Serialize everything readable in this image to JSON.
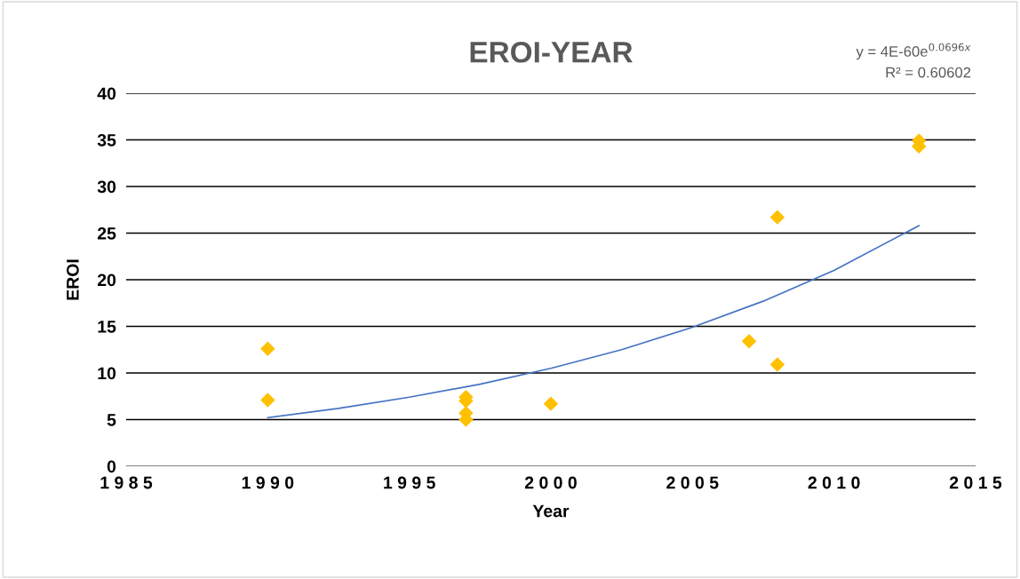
{
  "chart_data": {
    "type": "scatter",
    "title": "EROI-YEAR",
    "xlabel": "Year",
    "ylabel": "EROI",
    "xlim": [
      1985,
      2015
    ],
    "xticks": [
      1985,
      1990,
      1995,
      2000,
      2005,
      2010,
      2015
    ],
    "ylim": [
      0,
      40
    ],
    "yticks": [
      0,
      5,
      10,
      15,
      20,
      25,
      30,
      35,
      40
    ],
    "grid": "y",
    "marker": "diamond",
    "series": [
      {
        "color": "#ffc000",
        "x": [
          1990,
          1990,
          1997,
          1997,
          1997,
          1997,
          2000,
          2007,
          2008,
          2008,
          2013,
          2013
        ],
        "values": [
          12.6,
          7.1,
          7.4,
          7.0,
          5.7,
          5.0,
          6.7,
          13.4,
          10.9,
          26.7,
          34.9,
          34.3
        ]
      },
      {
        "type": "line",
        "color": "#4472c4",
        "line_style": "solid",
        "marker": "none",
        "x": [
          1990,
          1992.5,
          1995,
          1997.5,
          2000,
          2002.5,
          2005,
          2007.5,
          2010,
          2013
        ],
        "values": [
          5.2,
          6.2,
          7.4,
          8.8,
          10.5,
          12.5,
          14.9,
          17.7,
          21.0,
          25.8
        ]
      }
    ],
    "annotations": [
      "y = 4E-60e$^{0.0696x}$",
      "R² = 0.60602"
    ]
  }
}
